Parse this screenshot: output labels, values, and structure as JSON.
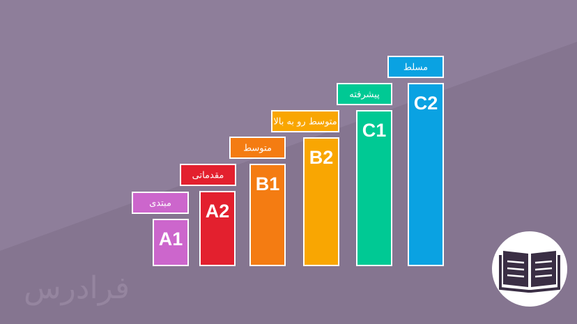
{
  "levels": [
    {
      "code": "A1",
      "label": "مبتدی",
      "color": "#cc66cc"
    },
    {
      "code": "A2",
      "label": "مقدماتی",
      "color": "#e3202e"
    },
    {
      "code": "B1",
      "label": "متوسط",
      "color": "#f47c12"
    },
    {
      "code": "B2",
      "label": "متوسط رو به بالا",
      "color": "#f9a602"
    },
    {
      "code": "C1",
      "label": "پیشرفته",
      "color": "#00c994"
    },
    {
      "code": "C2",
      "label": "مسلط",
      "color": "#0aa2e2"
    }
  ],
  "watermark": "فرادرس"
}
